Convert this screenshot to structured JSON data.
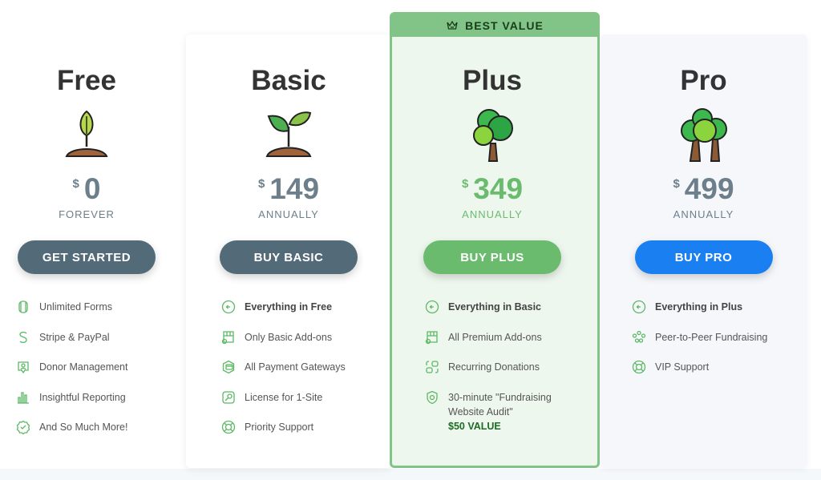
{
  "badge": {
    "label": "BEST VALUE",
    "icon": "crown-icon"
  },
  "colors": {
    "muted": "#6c7f8a",
    "green": "#6bbb6e",
    "blue": "#1a7ff0",
    "slate": "#536b78",
    "icon_green": "#5cb864"
  },
  "plans": [
    {
      "id": "free",
      "name": "Free",
      "currency": "$",
      "price": "0",
      "period": "FOREVER",
      "button": "GET STARTED",
      "button_color": "#536b78",
      "price_color": "#6c7f8a",
      "features": [
        {
          "icon": "form-icon",
          "text": "Unlimited Forms"
        },
        {
          "icon": "stripe-icon",
          "text": "Stripe & PayPal"
        },
        {
          "icon": "donor-icon",
          "text": "Donor Management"
        },
        {
          "icon": "bar-chart-icon",
          "text": "Insightful Reporting"
        },
        {
          "icon": "badge-check-icon",
          "text": "And So Much More!"
        }
      ]
    },
    {
      "id": "basic",
      "name": "Basic",
      "currency": "$",
      "price": "149",
      "period": "ANNUALLY",
      "button": "BUY BASIC",
      "button_color": "#536b78",
      "price_color": "#6c7f8a",
      "features": [
        {
          "icon": "arrow-left-circle-icon",
          "text": "Everything in Free",
          "bold": true
        },
        {
          "icon": "store-icon",
          "text": "Only Basic Add-ons"
        },
        {
          "icon": "payment-gateway-icon",
          "text": "All Payment Gateways"
        },
        {
          "icon": "key-icon",
          "text": "License for 1-Site"
        },
        {
          "icon": "lifebuoy-icon",
          "text": "Priority Support"
        }
      ]
    },
    {
      "id": "plus",
      "name": "Plus",
      "currency": "$",
      "price": "349",
      "period": "ANNUALLY",
      "button": "BUY PLUS",
      "button_color": "#6bbb6e",
      "price_color": "#6bbb6e",
      "features": [
        {
          "icon": "arrow-left-circle-icon",
          "text": "Everything in Basic",
          "bold": true
        },
        {
          "icon": "store-icon",
          "text": "All Premium Add-ons"
        },
        {
          "icon": "recurring-icon",
          "text": "Recurring Donations"
        },
        {
          "icon": "shield-icon",
          "text": "30-minute \"Fundraising Website Audit\"",
          "extra": "$50 VALUE"
        }
      ]
    },
    {
      "id": "pro",
      "name": "Pro",
      "currency": "$",
      "price": "499",
      "period": "ANNUALLY",
      "button": "BUY PRO",
      "button_color": "#1a7ff0",
      "price_color": "#6c7f8a",
      "features": [
        {
          "icon": "arrow-left-circle-icon",
          "text": "Everything in Plus",
          "bold": true
        },
        {
          "icon": "people-network-icon",
          "text": "Peer-to-Peer Fundraising"
        },
        {
          "icon": "lifebuoy-icon",
          "text": "VIP Support"
        }
      ]
    }
  ]
}
